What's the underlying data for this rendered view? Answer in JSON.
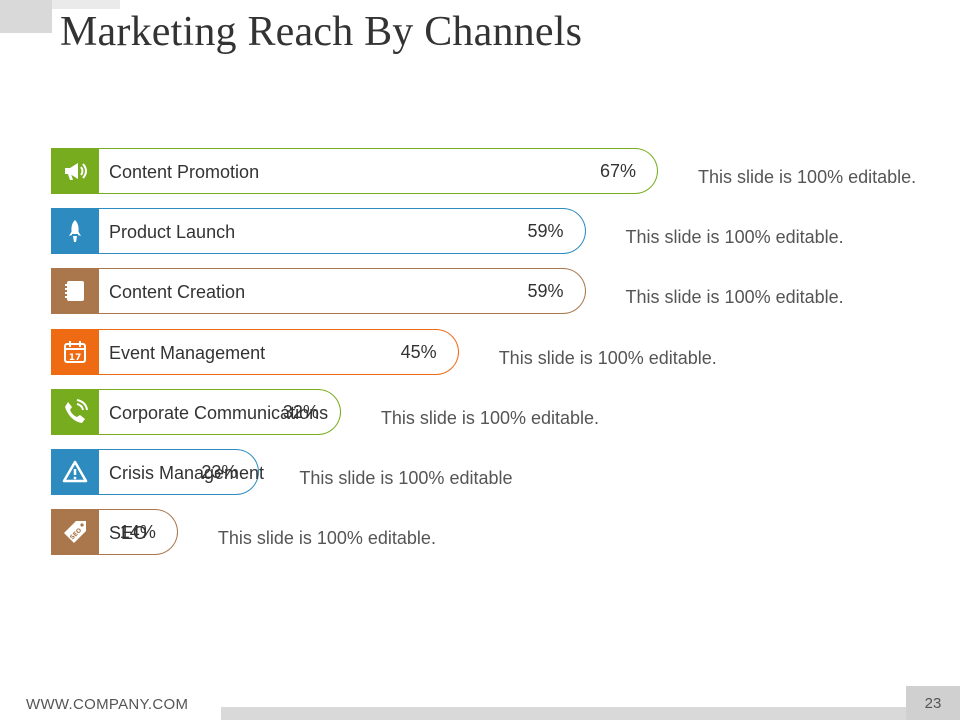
{
  "title": "Marketing Reach By Channels",
  "footer": {
    "url": "WWW.COMPANY.COM",
    "page_number": "23"
  },
  "chart_data": {
    "type": "bar",
    "orientation": "horizontal",
    "categories": [
      "Content Promotion",
      "Product Launch",
      "Content Creation",
      "Event Management",
      "Corporate Communications",
      "Crisis Management",
      "SEO"
    ],
    "values": [
      67,
      59,
      59,
      45,
      32,
      23,
      14
    ],
    "value_labels": [
      "67%",
      "59%",
      "59%",
      "45%",
      "32%",
      "23%",
      "14%"
    ],
    "notes": [
      "This slide is 100% editable.",
      "This slide is 100% editable.",
      "This slide is 100% editable.",
      "This slide is 100% editable.",
      "This slide is 100% editable.",
      "This slide is 100% editable",
      "This slide is 100% editable."
    ],
    "icons": [
      "megaphone-icon",
      "rocket-icon",
      "notebook-icon",
      "calendar-icon",
      "phone-icon",
      "warning-icon",
      "seo-tag-icon"
    ],
    "colors": [
      "#77ac1e",
      "#2e8bbf",
      "#a9774b",
      "#ef6b13",
      "#77ac1e",
      "#2e8bbf",
      "#a9774b"
    ],
    "title": "",
    "xlabel": "",
    "ylabel": "",
    "grid": false,
    "legend": "none"
  }
}
